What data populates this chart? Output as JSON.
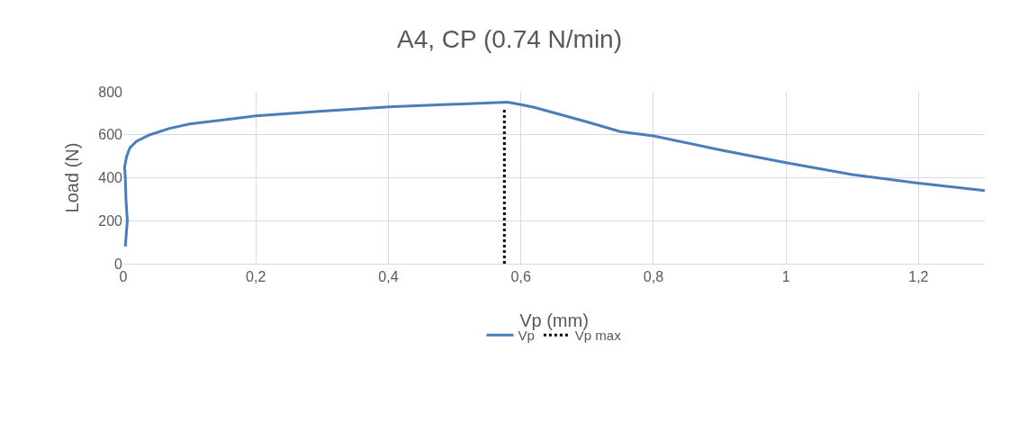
{
  "chart_data": {
    "type": "line",
    "title": "A4, CP (0.74 N/min)",
    "xlabel": "Vp (mm)",
    "ylabel": "Load (N)",
    "series": [
      {
        "name": "Vp",
        "color": "#4a7ebb",
        "line_style": "solid",
        "x": [
          0.003,
          0.006,
          0.004,
          0.003,
          0.002,
          0.005,
          0.01,
          0.02,
          0.04,
          0.07,
          0.1,
          0.2,
          0.3,
          0.4,
          0.5,
          0.58,
          0.6,
          0.62,
          0.7,
          0.75,
          0.8,
          0.9,
          1.0,
          1.1,
          1.2,
          1.3
        ],
        "values": [
          80,
          200,
          300,
          400,
          450,
          500,
          540,
          570,
          600,
          630,
          650,
          688,
          710,
          730,
          742,
          752,
          740,
          728,
          660,
          615,
          595,
          530,
          470,
          415,
          375,
          340
        ]
      },
      {
        "name": "Vp max",
        "color": "#000000",
        "line_style": "dotted",
        "x": [
          0.575,
          0.575
        ],
        "values": [
          0,
          725
        ]
      }
    ],
    "xlim": [
      0,
      1.3
    ],
    "xticks": [
      0,
      {
        "value": 0.2,
        "label": "0,2"
      },
      {
        "value": 0.4,
        "label": "0,4"
      },
      {
        "value": 0.6,
        "label": "0,6"
      },
      {
        "value": 0.8,
        "label": "0,8"
      },
      1,
      {
        "value": 1.2,
        "label": "1,2"
      }
    ],
    "ylim": [
      0,
      800
    ],
    "yticks": [
      0,
      200,
      400,
      600,
      800
    ],
    "grid": true,
    "legend": "bottom",
    "marker": "none"
  }
}
